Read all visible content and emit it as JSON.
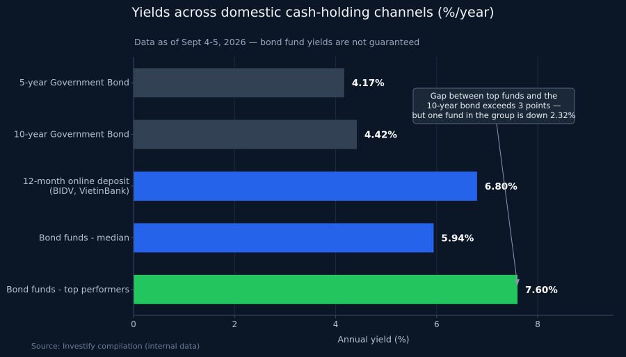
{
  "chart_data": {
    "type": "bar",
    "orientation": "horizontal",
    "title": "Yields across domestic cash-holding channels (%/year)",
    "subtitle": "Data as of Sept 4-5, 2026 — bond fund yields are not guaranteed",
    "xlabel": "Annual yield (%)",
    "ylabel": "",
    "xlim": [
      0,
      9.5
    ],
    "xticks": [
      0,
      2,
      4,
      6,
      8
    ],
    "grid": "x",
    "categories": [
      [
        "5-year Government Bond"
      ],
      [
        "10-year Government Bond"
      ],
      [
        "12-month online deposit",
        "(BIDV, VietinBank)"
      ],
      [
        "Bond funds - median"
      ],
      [
        "Bond funds - top performers"
      ]
    ],
    "values": [
      4.17,
      4.42,
      6.8,
      5.94,
      7.6
    ],
    "value_labels": [
      "4.17%",
      "4.42%",
      "6.80%",
      "5.94%",
      "7.60%"
    ],
    "colors": [
      "#334155",
      "#334155",
      "#2563eb",
      "#2563eb",
      "#22c55e"
    ],
    "annotation": {
      "lines": [
        "Gap between top funds and the",
        "10-year bond exceeds 3 points —",
        "but one fund in the group is down 2.32%"
      ],
      "target_category_index": 4,
      "target_value": 7.6
    },
    "source": "Source: Investify compilation (internal data)"
  },
  "colors": {
    "background": "#0b1727",
    "grid": "#1e2b3c",
    "axis": "#3a4a5e"
  }
}
